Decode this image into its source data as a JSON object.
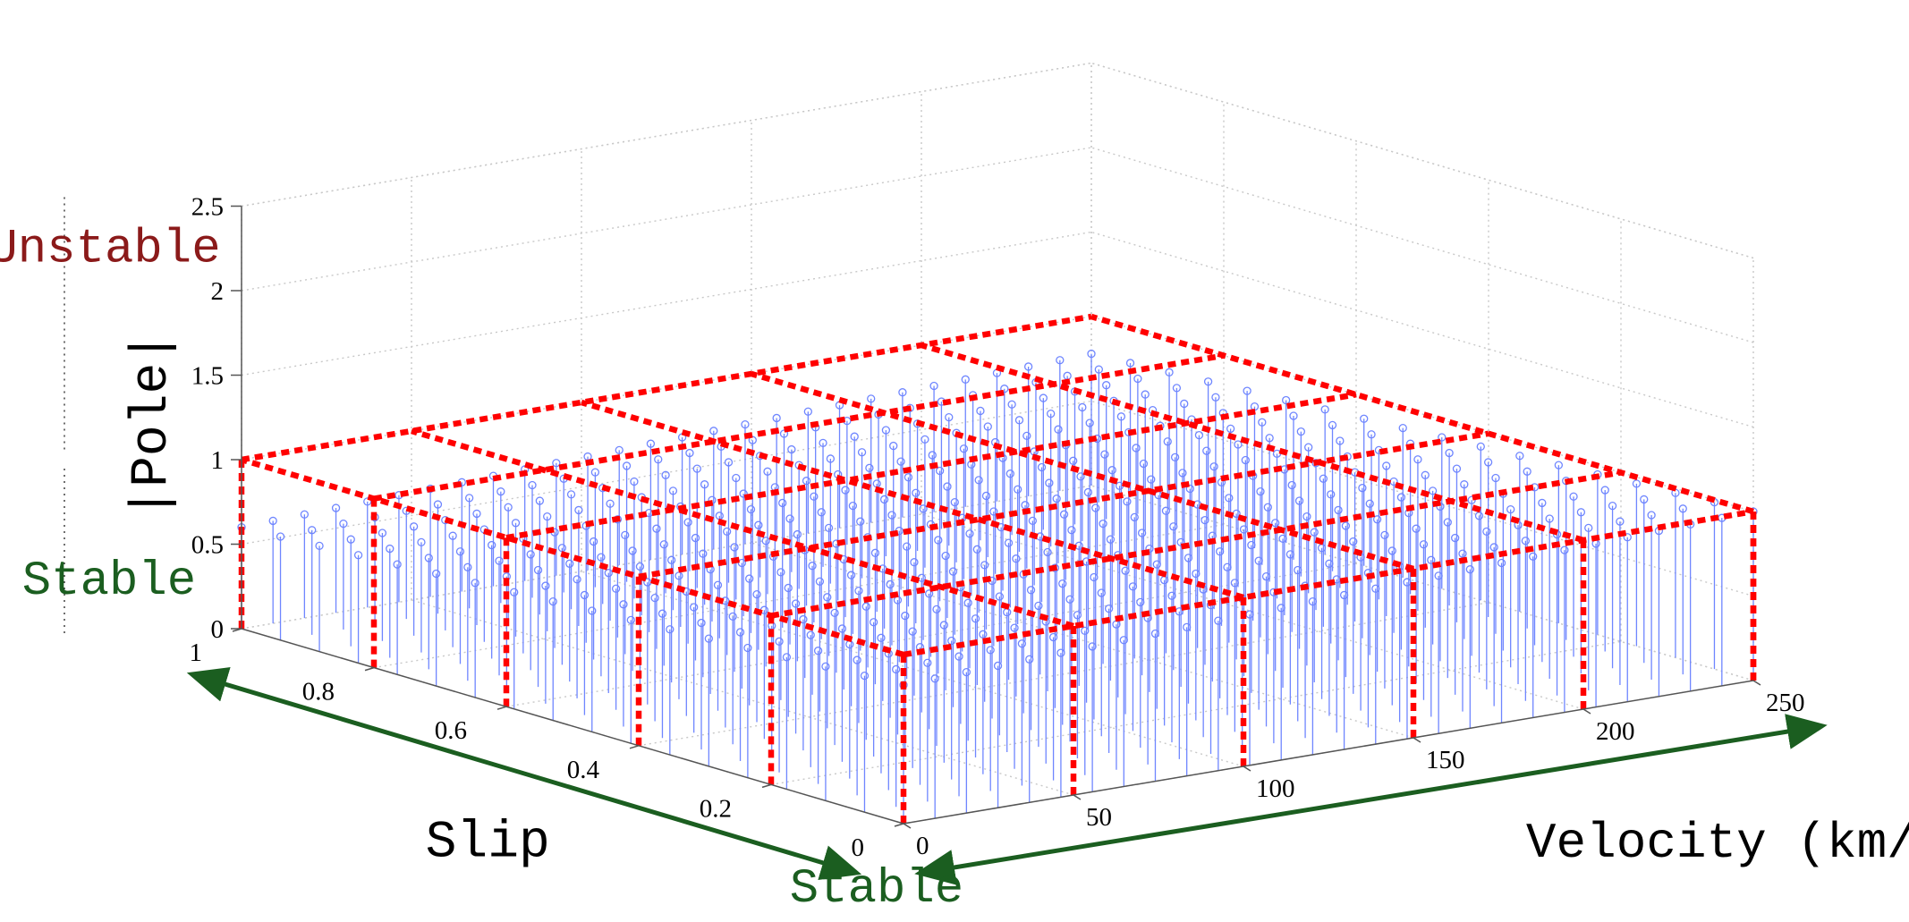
{
  "chart_data": {
    "type": "3d-stem",
    "title": "",
    "xlabel": "Velocity (km/h)",
    "ylabel": "Slip",
    "zlabel": "|Pole|",
    "x_ticks": [
      "0",
      "50",
      "100",
      "150",
      "200",
      "250"
    ],
    "y_ticks": [
      "0",
      "0.2",
      "0.4",
      "0.6",
      "0.8",
      "1"
    ],
    "z_ticks": [
      "0",
      "0.5",
      "1",
      "1.5",
      "2",
      "2.5"
    ],
    "xlim": [
      0,
      250
    ],
    "ylim": [
      0,
      1
    ],
    "zlim": [
      0,
      2.5
    ],
    "grid": true,
    "stem_color": "#6f86ff",
    "bound_color": "#ff0000",
    "stable_color": "#1b5e20",
    "unstable_color": "#8b1a1a",
    "stems": {
      "velocity_range": [
        0,
        250
      ],
      "slip_range": [
        0,
        1
      ],
      "velocity_count": 28,
      "slip_count": 18,
      "magnitude_min": 0.6,
      "magnitude_max": 1.0
    },
    "bound_surface": {
      "z": 1.0,
      "velocity_lines": [
        0,
        50,
        100,
        150,
        200,
        250
      ],
      "slip_lines": [
        0,
        0.2,
        0.4,
        0.6,
        0.8,
        1
      ]
    },
    "annotations": {
      "unstable_label": "Unstable",
      "stable_label_z": "Stable",
      "stable_label_plane": "Stable"
    }
  }
}
